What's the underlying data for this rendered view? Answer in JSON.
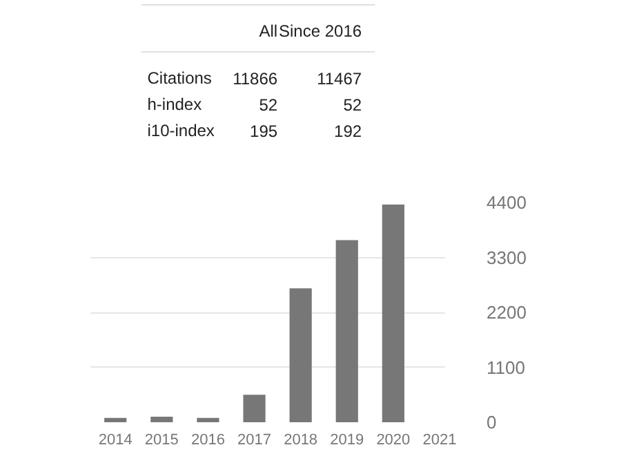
{
  "chart_data": {
    "type": "bar",
    "categories": [
      "2014",
      "2015",
      "2016",
      "2017",
      "2018",
      "2019",
      "2020",
      "2021"
    ],
    "values": [
      85,
      110,
      85,
      550,
      2680,
      3645,
      4360,
      0
    ],
    "color": "#777777",
    "ylim": [
      0,
      4400
    ],
    "yticks": [
      0,
      1100,
      2200,
      3300,
      4400
    ],
    "grid": "y",
    "annotations": [
      "All",
      "Since 2016",
      "Citations",
      "11866",
      "11467",
      "h-index",
      "52",
      "52",
      "i10-index",
      "195",
      "192"
    ]
  }
}
